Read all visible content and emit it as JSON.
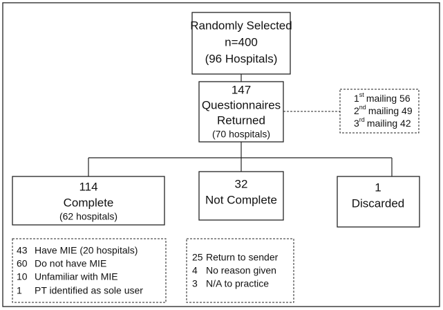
{
  "nodes": {
    "selected": {
      "lines": [
        "Randomly Selected",
        "n=400",
        "(96 Hospitals)"
      ]
    },
    "returned": {
      "lines": [
        "147",
        "Questionnaires",
        "Returned"
      ],
      "sub": "(70 hospitals)"
    },
    "mailings": [
      {
        "ordinal": "1",
        "suffix": "st",
        "text": "mailing 56"
      },
      {
        "ordinal": "2",
        "suffix": "nd",
        "text": "mailing 49"
      },
      {
        "ordinal": "3",
        "suffix": "rd",
        "text": "mailing 42"
      }
    ],
    "complete": {
      "lines": [
        "114",
        "Complete"
      ],
      "sub": "(62 hospitals)"
    },
    "not_complete": {
      "lines": [
        "32",
        "Not Complete"
      ]
    },
    "discarded": {
      "lines": [
        "1",
        "Discarded"
      ]
    },
    "complete_breakdown": [
      {
        "n": "43",
        "text": "Have MIE (20 hospitals)"
      },
      {
        "n": "60",
        "text": "Do not have MIE"
      },
      {
        "n": "10",
        "text": "Unfamiliar with MIE"
      },
      {
        "n": "1",
        "text": "PT identified as sole user"
      }
    ],
    "not_complete_breakdown": [
      {
        "n": "25",
        "text": "Return to sender"
      },
      {
        "n": "4",
        "text": "No reason given"
      },
      {
        "n": "3",
        "text": "N/A to practice"
      }
    ]
  }
}
